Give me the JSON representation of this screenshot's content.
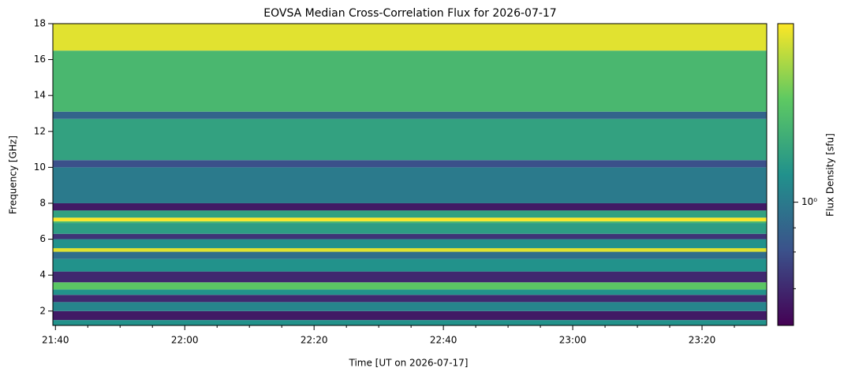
{
  "chart_data": {
    "type": "heatmap",
    "title": "EOVSA Median Cross-Correlation Flux for 2026-07-17",
    "x_label": "Time [UT on 2026-07-17]",
    "y_label": "Frequency [GHz]",
    "colorbar_label": "Flux Density [sfu]",
    "colormap": "viridis",
    "color_scale": "log",
    "xlim": [
      "21:39:36",
      "23:30:00"
    ],
    "xticks": [
      "21:40",
      "22:00",
      "22:20",
      "22:40",
      "23:00",
      "23:20"
    ],
    "xminorticks": [
      "21:45",
      "21:50",
      "21:55",
      "22:05",
      "22:10",
      "22:15",
      "22:25",
      "22:30",
      "22:35",
      "22:45",
      "22:50",
      "22:55",
      "23:05",
      "23:10",
      "23:15",
      "23:25"
    ],
    "ylim": [
      1.2,
      18
    ],
    "yticks": [
      2,
      4,
      6,
      8,
      10,
      12,
      14,
      16,
      18
    ],
    "row_edges": [
      1.2,
      1.5,
      2.0,
      2.5,
      2.9,
      3.2,
      3.6,
      4.2,
      4.9,
      5.3,
      5.5,
      6.0,
      6.3,
      6.9,
      7.0,
      7.2,
      7.6,
      8.0,
      10.0,
      10.4,
      12.7,
      13.1,
      16.5,
      18.0
    ],
    "values": [
      1.5,
      0.25,
      1.2,
      0.3,
      1.5,
      4,
      0.3,
      1.5,
      0.8,
      10,
      1.5,
      0.35,
      1.8,
      3,
      12,
      2,
      0.25,
      1.0,
      0.5,
      2,
      0.7,
      3,
      10
    ],
    "clim": [
      0.18,
      12
    ],
    "cticks": [
      {
        "value": 1,
        "label": "10⁰"
      }
    ],
    "cminorticks": [
      0.3,
      0.5,
      0.7
    ]
  }
}
